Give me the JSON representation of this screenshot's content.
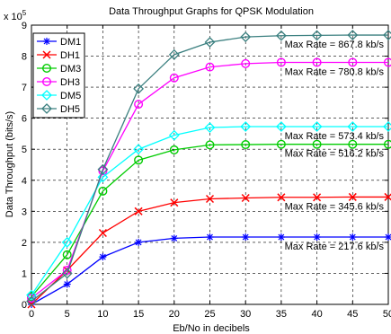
{
  "chart_data": {
    "type": "line",
    "title": "Data Throughput Graphs for QPSK Modulation",
    "xlabel": "Eb/No in decibels",
    "ylabel": "Data Throughput (bits/s)",
    "y_exponent_label": "x 10",
    "y_exponent_power": "5",
    "xlim": [
      0,
      50
    ],
    "ylim": [
      0,
      9
    ],
    "xticks": [
      0,
      5,
      10,
      15,
      20,
      25,
      30,
      35,
      40,
      45,
      50
    ],
    "yticks": [
      0,
      1,
      2,
      3,
      4,
      5,
      6,
      7,
      8,
      9
    ],
    "grid": true,
    "legend_position": "top-left",
    "x": [
      0,
      5,
      10,
      15,
      20,
      25,
      30,
      35,
      40,
      45,
      50
    ],
    "series": [
      {
        "name": "DM1",
        "color": "#0000ff",
        "marker": "star",
        "values": [
          0.0,
          0.65,
          1.53,
          2.0,
          2.13,
          2.17,
          2.17,
          2.17,
          2.17,
          2.17,
          2.17
        ]
      },
      {
        "name": "DH1",
        "color": "#ff0000",
        "marker": "x",
        "values": [
          0.0,
          1.1,
          2.3,
          3.0,
          3.28,
          3.4,
          3.43,
          3.45,
          3.45,
          3.46,
          3.46
        ]
      },
      {
        "name": "DM3",
        "color": "#00cc00",
        "marker": "circle",
        "values": [
          0.25,
          1.6,
          3.65,
          4.65,
          4.98,
          5.14,
          5.15,
          5.16,
          5.16,
          5.16,
          5.16
        ]
      },
      {
        "name": "DH3",
        "color": "#ff00ff",
        "marker": "circle",
        "values": [
          0.2,
          1.1,
          4.3,
          6.45,
          7.3,
          7.65,
          7.76,
          7.8,
          7.8,
          7.8,
          7.8
        ]
      },
      {
        "name": "DM5",
        "color": "#00ffff",
        "marker": "diamond",
        "values": [
          0.3,
          2.0,
          4.1,
          5.0,
          5.45,
          5.7,
          5.73,
          5.73,
          5.73,
          5.73,
          5.73
        ]
      },
      {
        "name": "DH5",
        "color": "#3a7f7f",
        "marker": "diamond",
        "values": [
          0.1,
          1.0,
          4.35,
          6.95,
          8.05,
          8.45,
          8.62,
          8.66,
          8.67,
          8.68,
          8.68
        ]
      }
    ],
    "annotations": [
      {
        "text": "Max Rate = 867.8 kb/s",
        "y": 8.68
      },
      {
        "text": "Max Rate = 780.8 kb/s",
        "y": 7.8
      },
      {
        "text": "Max Rate = 573.4 kb/s",
        "y": 5.73
      },
      {
        "text": "Max Rate = 516.2 kb/s",
        "y": 5.16
      },
      {
        "text": "Max Rate = 345.6 kb/s",
        "y": 3.46
      },
      {
        "text": "Max Rate = 217.6 kb/s",
        "y": 2.17
      }
    ]
  }
}
